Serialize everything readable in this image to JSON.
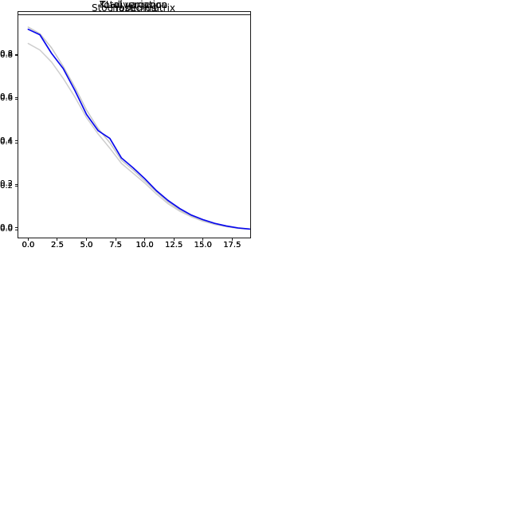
{
  "figure": {
    "background": "#ffffff",
    "highlight_color": "#0909ee",
    "reference_color_1": "#c0c0c0",
    "reference_color_2": "#c9c9c9"
  },
  "chart_data": [
    {
      "type": "line",
      "title": "KL divergence",
      "grid": false,
      "legend": null,
      "xlim": [
        -0.85,
        19.05
      ],
      "ylim": [
        -0.045,
        0.995
      ],
      "x": [
        0,
        1,
        2,
        3,
        4,
        5,
        6,
        7,
        8,
        9,
        10,
        11,
        12,
        13,
        14,
        15,
        16,
        17,
        18,
        19
      ],
      "xticks": {
        "values": [
          0,
          2.5,
          5,
          7.5,
          10,
          12.5,
          15,
          17.5
        ],
        "labels": [
          "0.0",
          "2.5",
          "5.0",
          "7.5",
          "10.0",
          "12.5",
          "15.0",
          "17.5"
        ]
      },
      "yticks": {
        "values": [
          0,
          0.2,
          0.4,
          0.6,
          0.8
        ],
        "labels": [
          "0.0",
          "0.2",
          "0.4",
          "0.6",
          "0.8"
        ]
      },
      "series": [
        {
          "name": "reference-1",
          "role": "reference",
          "color": "#c0c0c0",
          "values": [
            0.93,
            0.9,
            0.85,
            0.775,
            0.685,
            0.59,
            0.5,
            0.425,
            0.365,
            0.3,
            0.225,
            0.18,
            0.133,
            0.097,
            0.068,
            0.047,
            0.03,
            0.019,
            0.01,
            0.005
          ]
        },
        {
          "name": "reference-2",
          "role": "reference",
          "color": "#c9c9c9",
          "values": [
            0.915,
            0.885,
            0.84,
            0.76,
            0.67,
            0.575,
            0.485,
            0.41,
            0.35,
            0.285,
            0.215,
            0.17,
            0.127,
            0.093,
            0.065,
            0.045,
            0.029,
            0.018,
            0.01,
            0.005
          ]
        },
        {
          "name": "main",
          "role": "highlight",
          "color": "#0909ee",
          "values": [
            0.855,
            0.835,
            0.785,
            0.705,
            0.615,
            0.52,
            0.435,
            0.36,
            0.29,
            0.25,
            0.195,
            0.155,
            0.115,
            0.085,
            0.06,
            0.042,
            0.028,
            0.018,
            0.01,
            0.005
          ]
        }
      ]
    },
    {
      "type": "line",
      "title": "Total variation",
      "grid": false,
      "legend": null,
      "xlim": [
        -0.85,
        19.05
      ],
      "ylim": [
        -0.045,
        0.995
      ],
      "x": [
        0,
        1,
        2,
        3,
        4,
        5,
        6,
        7,
        8,
        9,
        10,
        11,
        12,
        13,
        14,
        15,
        16,
        17,
        18,
        19
      ],
      "xticks": {
        "values": [
          0,
          2.5,
          5,
          7.5,
          10,
          12.5,
          15,
          17.5
        ],
        "labels": [
          "0.0",
          "2.5",
          "5.0",
          "7.5",
          "10.0",
          "12.5",
          "15.0",
          "17.5"
        ]
      },
      "yticks": {
        "values": [
          0,
          0.2,
          0.4,
          0.6,
          0.8
        ],
        "labels": [
          "0.0",
          "0.2",
          "0.4",
          "0.6",
          "0.8"
        ]
      },
      "series": [
        {
          "name": "reference-1",
          "role": "reference",
          "color": "#c0c0c0",
          "values": [
            0.915,
            0.88,
            0.825,
            0.745,
            0.655,
            0.575,
            0.51,
            0.44,
            0.375,
            0.315,
            0.25,
            0.19,
            0.14,
            0.098,
            0.07,
            0.048,
            0.031,
            0.018,
            0.009,
            0.004
          ]
        },
        {
          "name": "reference-2",
          "role": "reference",
          "color": "#c9c9c9",
          "values": [
            0.855,
            0.825,
            0.775,
            0.705,
            0.625,
            0.555,
            0.49,
            0.425,
            0.36,
            0.305,
            0.245,
            0.185,
            0.137,
            0.096,
            0.068,
            0.047,
            0.03,
            0.017,
            0.009,
            0.004
          ]
        },
        {
          "name": "main",
          "role": "highlight",
          "color": "#0909ee",
          "values": [
            0.935,
            0.905,
            0.85,
            0.765,
            0.665,
            0.59,
            0.525,
            0.46,
            0.395,
            0.335,
            0.265,
            0.2,
            0.145,
            0.1,
            0.072,
            0.05,
            0.032,
            0.019,
            0.01,
            0.005
          ]
        }
      ]
    },
    {
      "type": "line",
      "title": "Frobenius",
      "grid": false,
      "legend": null,
      "xlim": [
        -0.85,
        19.05
      ],
      "ylim": [
        -0.035,
        0.985
      ],
      "x": [
        0,
        1,
        2,
        3,
        4,
        5,
        6,
        7,
        8,
        9,
        10,
        11,
        12,
        13,
        14,
        15,
        16,
        17,
        18,
        19
      ],
      "xticks": {
        "values": [
          0,
          2.5,
          5,
          7.5,
          10,
          12.5,
          15,
          17.5
        ],
        "labels": [
          "0.0",
          "2.5",
          "5.0",
          "7.5",
          "10.0",
          "12.5",
          "15.0",
          "17.5"
        ]
      },
      "yticks": {
        "values": [
          0,
          0.2,
          0.4,
          0.6,
          0.8
        ],
        "labels": [
          "0.0",
          "0.2",
          "0.4",
          "0.6",
          "0.8"
        ]
      },
      "series": [
        {
          "name": "reference-1",
          "role": "reference",
          "color": "#c0c0c0",
          "values": [
            0.93,
            0.895,
            0.825,
            0.745,
            0.655,
            0.555,
            0.47,
            0.4,
            0.345,
            0.28,
            0.23,
            0.178,
            0.128,
            0.09,
            0.06,
            0.039,
            0.024,
            0.014,
            0.007,
            0.003
          ]
        },
        {
          "name": "reference-2",
          "role": "reference",
          "color": "#c9c9c9",
          "values": [
            0.855,
            0.82,
            0.765,
            0.69,
            0.61,
            0.525,
            0.445,
            0.375,
            0.315,
            0.255,
            0.21,
            0.165,
            0.12,
            0.084,
            0.057,
            0.036,
            0.022,
            0.013,
            0.006,
            0.003
          ]
        },
        {
          "name": "main",
          "role": "highlight",
          "color": "#0909ee",
          "values": [
            0.905,
            0.89,
            0.835,
            0.76,
            0.675,
            0.575,
            0.49,
            0.41,
            0.335,
            0.3,
            0.26,
            0.205,
            0.148,
            0.103,
            0.07,
            0.046,
            0.028,
            0.016,
            0.008,
            0.003
          ]
        }
      ]
    },
    {
      "type": "line",
      "title": "Stochastic matrix",
      "grid": false,
      "legend": null,
      "xlim": [
        -0.85,
        19.05
      ],
      "ylim": [
        -0.035,
        0.985
      ],
      "x": [
        0,
        1,
        2,
        3,
        4,
        5,
        6,
        7,
        8,
        9,
        10,
        11,
        12,
        13,
        14,
        15,
        16,
        17,
        18,
        19
      ],
      "xticks": {
        "values": [
          0,
          2.5,
          5,
          7.5,
          10,
          12.5,
          15,
          17.5
        ],
        "labels": [
          "0.0",
          "2.5",
          "5.0",
          "7.5",
          "10.0",
          "12.5",
          "15.0",
          "17.5"
        ]
      },
      "yticks": {
        "values": [
          0,
          0.2,
          0.4,
          0.6,
          0.8
        ],
        "labels": [
          "0.0",
          "0.2",
          "0.4",
          "0.6",
          "0.8"
        ]
      },
      "series": [
        {
          "name": "reference-1",
          "role": "reference",
          "color": "#c0c0c0",
          "values": [
            0.93,
            0.9,
            0.835,
            0.75,
            0.655,
            0.55,
            0.465,
            0.4,
            0.32,
            0.275,
            0.225,
            0.175,
            0.128,
            0.092,
            0.064,
            0.043,
            0.027,
            0.016,
            0.008,
            0.004
          ]
        },
        {
          "name": "reference-2",
          "role": "reference",
          "color": "#c9c9c9",
          "values": [
            0.855,
            0.825,
            0.77,
            0.695,
            0.61,
            0.515,
            0.44,
            0.375,
            0.305,
            0.26,
            0.215,
            0.165,
            0.12,
            0.086,
            0.06,
            0.04,
            0.025,
            0.015,
            0.007,
            0.003
          ]
        },
        {
          "name": "main",
          "role": "highlight",
          "color": "#0909ee",
          "values": [
            0.92,
            0.895,
            0.81,
            0.74,
            0.64,
            0.53,
            0.455,
            0.42,
            0.33,
            0.285,
            0.235,
            0.18,
            0.135,
            0.098,
            0.068,
            0.047,
            0.03,
            0.018,
            0.009,
            0.004
          ]
        }
      ]
    }
  ]
}
